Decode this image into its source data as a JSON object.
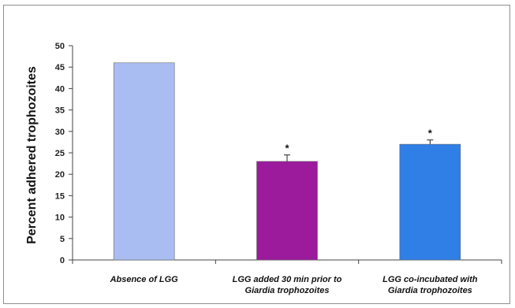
{
  "chart_data": {
    "type": "bar",
    "categories": [
      [
        "Absence of LGG"
      ],
      [
        "LGG added 30 min prior to",
        "Giardia trophozoites"
      ],
      [
        "LGG co-incubated with",
        "Giardia trophozoites"
      ]
    ],
    "values": [
      46,
      23,
      27
    ],
    "errors": [
      0,
      1.5,
      1
    ],
    "significance": [
      "",
      "*",
      "*"
    ],
    "colors": [
      "#a9bdf2",
      "#9c1a9c",
      "#2f7fe6"
    ],
    "ylabel": "Percent adhered trophozoites",
    "xlabel": "",
    "title": "",
    "ylim": [
      0,
      50
    ],
    "yticks": [
      0,
      5,
      10,
      15,
      20,
      25,
      30,
      35,
      40,
      45,
      50
    ],
    "grid": false,
    "legend": "none"
  }
}
